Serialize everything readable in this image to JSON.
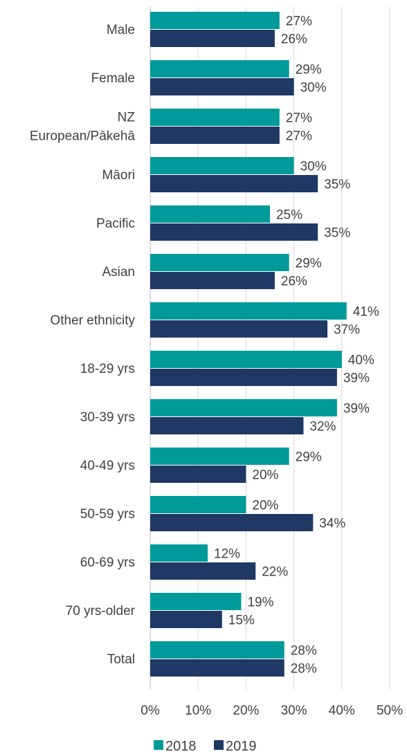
{
  "chart_data": {
    "type": "bar",
    "orientation": "horizontal",
    "categories": [
      "Male",
      "Female",
      "NZ European/Pākehā",
      "Māori",
      "Pacific",
      "Asian",
      "Other ethnicity",
      "18-29 yrs",
      "30-39 yrs",
      "40-49 yrs",
      "50-59 yrs",
      "60-69 yrs",
      "70 yrs-older",
      "Total"
    ],
    "category_lines": [
      [
        "Male"
      ],
      [
        "Female"
      ],
      [
        "NZ",
        "European/Pākehā"
      ],
      [
        "Māori"
      ],
      [
        "Pacific"
      ],
      [
        "Asian"
      ],
      [
        "Other ethnicity"
      ],
      [
        "18-29 yrs"
      ],
      [
        "30-39 yrs"
      ],
      [
        "40-49 yrs"
      ],
      [
        "50-59 yrs"
      ],
      [
        "60-69 yrs"
      ],
      [
        "70 yrs-older"
      ],
      [
        "Total"
      ]
    ],
    "series": [
      {
        "name": "2018",
        "color": "#009a9a",
        "values": [
          27,
          29,
          27,
          30,
          25,
          29,
          41,
          40,
          39,
          29,
          20,
          12,
          19,
          28
        ]
      },
      {
        "name": "2019",
        "color": "#1f3864",
        "values": [
          26,
          30,
          27,
          35,
          35,
          26,
          37,
          39,
          32,
          20,
          34,
          22,
          15,
          28
        ]
      }
    ],
    "xlim": [
      0,
      50
    ],
    "x_ticks": [
      "0%",
      "10%",
      "20%",
      "30%",
      "40%",
      "50%"
    ],
    "value_suffix": "%",
    "grid": true,
    "legend_position": "bottom"
  }
}
